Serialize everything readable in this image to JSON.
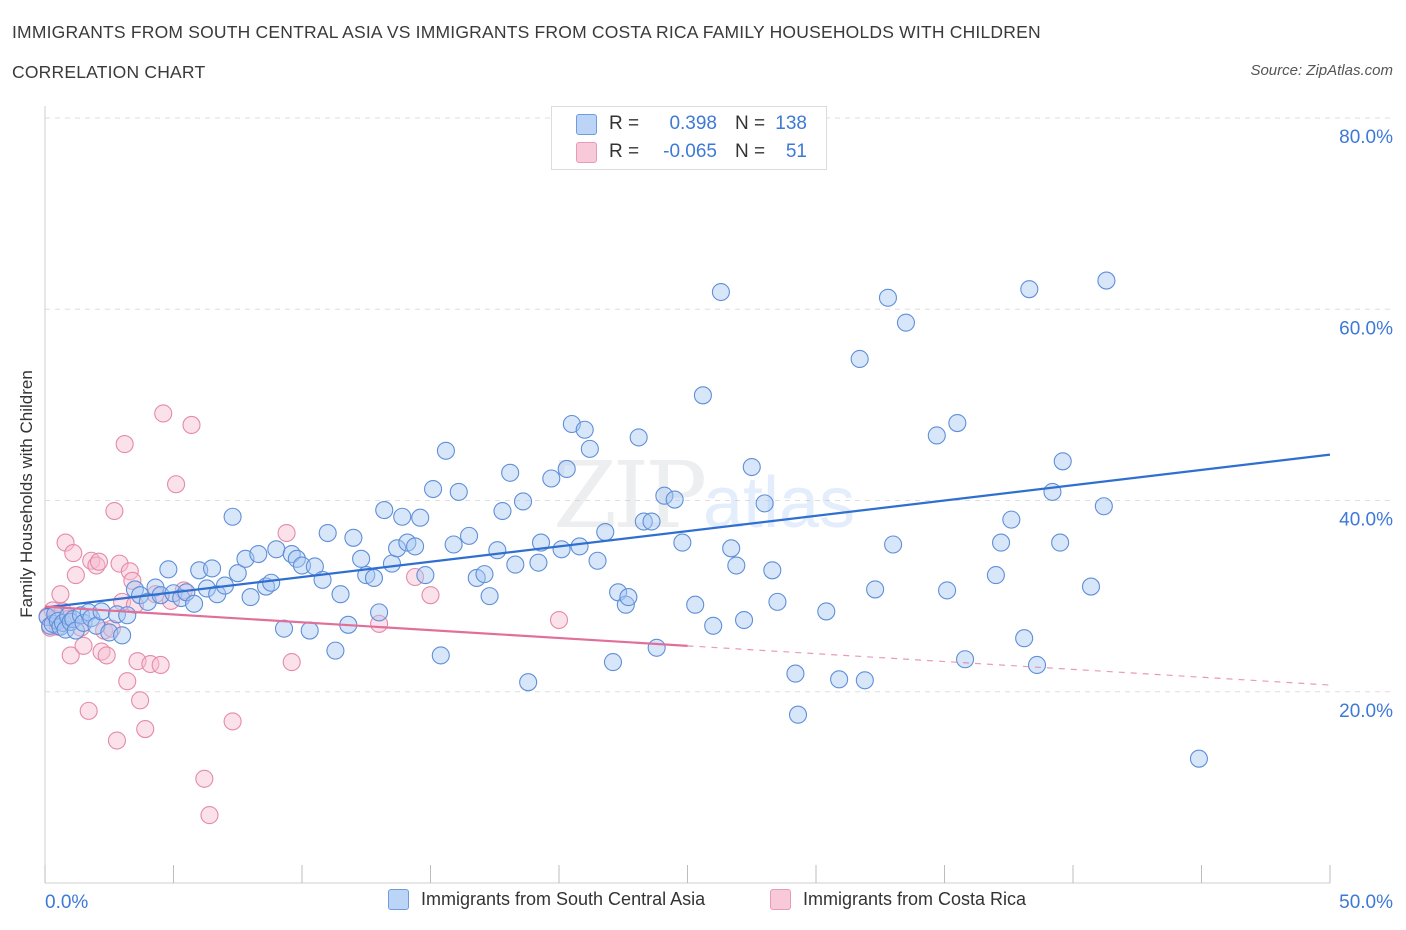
{
  "header": {
    "title": "IMMIGRANTS FROM SOUTH CENTRAL ASIA VS IMMIGRANTS FROM COSTA RICA FAMILY HOUSEHOLDS WITH CHILDREN",
    "subtitle": "CORRELATION CHART",
    "source": "Source: ZipAtlas.com"
  },
  "legend": {
    "rows": [
      {
        "r_label": "R =",
        "r_value": "0.398",
        "n_label": "N =",
        "n_value": "138"
      },
      {
        "r_label": "R =",
        "r_value": "-0.065",
        "n_label": "N =",
        "n_value": "51"
      }
    ]
  },
  "bottom_legend": {
    "blue_label": "Immigrants from South Central Asia",
    "pink_label": "Immigrants from Costa Rica"
  },
  "colors": {
    "blue_fill": "#a9c8f3",
    "blue_stroke": "#5f8fd8",
    "blue_line": "#2f6fd0",
    "pink_fill": "#f6bcd0",
    "pink_stroke": "#e58aaa",
    "pink_line": "#e0709a",
    "axis_text": "#3d79d6"
  },
  "watermark": {
    "zip": "ZIP",
    "atlas": "atlas"
  },
  "chart_data": {
    "type": "scatter",
    "title": "IMMIGRANTS FROM SOUTH CENTRAL ASIA VS IMMIGRANTS FROM COSTA RICA FAMILY HOUSEHOLDS WITH CHILDREN",
    "xlabel": "",
    "ylabel": "Family Households with Children",
    "xlim": [
      0,
      50
    ],
    "ylim": [
      0,
      80
    ],
    "x_tick_labels": [
      "0.0%",
      "50.0%"
    ],
    "y_ticks": [
      20,
      40,
      60,
      80
    ],
    "y_tick_labels": [
      "20.0%",
      "40.0%",
      "60.0%",
      "80.0%"
    ],
    "grid": true,
    "legend_position": "top-center",
    "series": [
      {
        "name": "Immigrants from South Central Asia",
        "r": 0.398,
        "n": 138,
        "trend": {
          "x0": 0,
          "y0": 28.8,
          "x1": 50,
          "y1": 44.8
        },
        "points": [
          [
            0.1,
            27.8
          ],
          [
            0.2,
            26.9
          ],
          [
            0.3,
            27.1
          ],
          [
            0.4,
            28.1
          ],
          [
            0.5,
            27.4
          ],
          [
            0.6,
            26.8
          ],
          [
            0.7,
            27.2
          ],
          [
            0.8,
            26.5
          ],
          [
            0.9,
            27.9
          ],
          [
            1.0,
            27.3
          ],
          [
            1.1,
            27.6
          ],
          [
            1.2,
            26.4
          ],
          [
            1.4,
            28.0
          ],
          [
            1.5,
            27.2
          ],
          [
            1.7,
            28.3
          ],
          [
            1.8,
            27.7
          ],
          [
            2.0,
            26.9
          ],
          [
            2.2,
            28.4
          ],
          [
            2.5,
            26.2
          ],
          [
            2.8,
            28.1
          ],
          [
            3.0,
            25.9
          ],
          [
            3.2,
            28.0
          ],
          [
            3.5,
            30.7
          ],
          [
            3.7,
            30.1
          ],
          [
            4.0,
            29.4
          ],
          [
            4.3,
            30.9
          ],
          [
            4.5,
            30.1
          ],
          [
            4.8,
            32.8
          ],
          [
            5.0,
            30.3
          ],
          [
            5.3,
            29.8
          ],
          [
            5.5,
            30.4
          ],
          [
            5.8,
            29.2
          ],
          [
            6.0,
            32.7
          ],
          [
            6.3,
            30.8
          ],
          [
            6.5,
            32.9
          ],
          [
            6.7,
            30.2
          ],
          [
            7.0,
            31.1
          ],
          [
            7.3,
            38.3
          ],
          [
            7.5,
            32.4
          ],
          [
            7.8,
            33.9
          ],
          [
            8.0,
            29.9
          ],
          [
            8.3,
            34.4
          ],
          [
            8.6,
            31.0
          ],
          [
            8.8,
            31.4
          ],
          [
            9.0,
            34.9
          ],
          [
            9.3,
            26.6
          ],
          [
            9.6,
            34.4
          ],
          [
            9.8,
            33.9
          ],
          [
            10.0,
            33.2
          ],
          [
            10.3,
            26.4
          ],
          [
            10.5,
            33.1
          ],
          [
            10.8,
            31.7
          ],
          [
            11.0,
            36.6
          ],
          [
            11.3,
            24.3
          ],
          [
            11.5,
            30.2
          ],
          [
            11.8,
            27.0
          ],
          [
            12.0,
            36.1
          ],
          [
            12.3,
            33.9
          ],
          [
            12.5,
            32.2
          ],
          [
            12.8,
            31.9
          ],
          [
            13.0,
            28.3
          ],
          [
            13.2,
            39.0
          ],
          [
            13.5,
            33.4
          ],
          [
            13.7,
            35.0
          ],
          [
            13.9,
            38.3
          ],
          [
            14.1,
            35.6
          ],
          [
            14.4,
            35.2
          ],
          [
            14.6,
            38.2
          ],
          [
            14.8,
            32.2
          ],
          [
            15.1,
            41.2
          ],
          [
            15.4,
            23.8
          ],
          [
            15.6,
            45.2
          ],
          [
            15.9,
            35.4
          ],
          [
            16.1,
            40.9
          ],
          [
            16.5,
            36.3
          ],
          [
            16.8,
            31.9
          ],
          [
            17.1,
            32.3
          ],
          [
            17.3,
            30.0
          ],
          [
            17.6,
            34.8
          ],
          [
            17.8,
            38.9
          ],
          [
            18.1,
            42.9
          ],
          [
            18.3,
            33.3
          ],
          [
            18.6,
            39.9
          ],
          [
            18.8,
            21.0
          ],
          [
            19.2,
            33.5
          ],
          [
            19.3,
            35.6
          ],
          [
            19.7,
            42.3
          ],
          [
            20.1,
            34.9
          ],
          [
            20.3,
            43.3
          ],
          [
            20.5,
            48.0
          ],
          [
            20.8,
            35.2
          ],
          [
            21.0,
            47.4
          ],
          [
            21.2,
            45.4
          ],
          [
            21.5,
            33.7
          ],
          [
            21.8,
            36.7
          ],
          [
            22.1,
            23.1
          ],
          [
            22.3,
            30.4
          ],
          [
            22.6,
            29.1
          ],
          [
            22.7,
            29.9
          ],
          [
            23.1,
            46.6
          ],
          [
            23.3,
            37.8
          ],
          [
            23.6,
            37.8
          ],
          [
            23.8,
            24.6
          ],
          [
            24.1,
            40.5
          ],
          [
            24.5,
            40.1
          ],
          [
            24.8,
            35.6
          ],
          [
            25.3,
            29.1
          ],
          [
            25.6,
            51.0
          ],
          [
            26.0,
            26.9
          ],
          [
            26.3,
            61.8
          ],
          [
            26.7,
            35.0
          ],
          [
            26.9,
            33.2
          ],
          [
            27.2,
            27.5
          ],
          [
            27.5,
            43.5
          ],
          [
            28.0,
            39.7
          ],
          [
            28.3,
            32.7
          ],
          [
            28.5,
            29.4
          ],
          [
            29.3,
            17.6
          ],
          [
            29.2,
            21.9
          ],
          [
            30.4,
            28.4
          ],
          [
            30.9,
            21.3
          ],
          [
            31.7,
            54.8
          ],
          [
            31.9,
            21.2
          ],
          [
            32.3,
            30.7
          ],
          [
            32.8,
            61.2
          ],
          [
            33.0,
            35.4
          ],
          [
            33.5,
            58.6
          ],
          [
            34.7,
            46.8
          ],
          [
            35.1,
            30.6
          ],
          [
            35.5,
            48.1
          ],
          [
            35.8,
            23.4
          ],
          [
            37.0,
            32.2
          ],
          [
            37.2,
            35.6
          ],
          [
            37.6,
            38.0
          ],
          [
            38.1,
            25.6
          ],
          [
            38.3,
            62.1
          ],
          [
            38.6,
            22.8
          ],
          [
            39.2,
            40.9
          ],
          [
            39.5,
            35.6
          ],
          [
            39.6,
            44.1
          ],
          [
            40.7,
            31.0
          ],
          [
            41.2,
            39.4
          ],
          [
            41.3,
            63.0
          ],
          [
            44.9,
            13.0
          ]
        ]
      },
      {
        "name": "Immigrants from Costa Rica",
        "r": -0.065,
        "n": 51,
        "trend": {
          "x0": 0,
          "y0": 28.9,
          "x1": 25,
          "y1": 24.8,
          "dash_to_x": 50,
          "dash_to_y": 20.7
        },
        "points": [
          [
            0.1,
            27.9
          ],
          [
            0.2,
            26.7
          ],
          [
            0.3,
            28.5
          ],
          [
            0.4,
            27.6
          ],
          [
            0.5,
            26.8
          ],
          [
            0.6,
            30.2
          ],
          [
            0.7,
            28.4
          ],
          [
            0.8,
            35.6
          ],
          [
            0.9,
            27.6
          ],
          [
            1.0,
            23.8
          ],
          [
            1.1,
            34.5
          ],
          [
            1.2,
            32.2
          ],
          [
            1.4,
            26.7
          ],
          [
            1.5,
            24.8
          ],
          [
            1.7,
            18.0
          ],
          [
            1.8,
            33.7
          ],
          [
            2.0,
            33.2
          ],
          [
            2.1,
            33.6
          ],
          [
            2.2,
            24.2
          ],
          [
            2.3,
            26.4
          ],
          [
            2.4,
            23.8
          ],
          [
            2.6,
            26.6
          ],
          [
            2.7,
            38.9
          ],
          [
            2.8,
            14.9
          ],
          [
            2.9,
            33.4
          ],
          [
            3.0,
            29.4
          ],
          [
            3.1,
            45.9
          ],
          [
            3.2,
            21.1
          ],
          [
            3.3,
            32.6
          ],
          [
            3.4,
            31.6
          ],
          [
            3.5,
            29.1
          ],
          [
            3.6,
            23.2
          ],
          [
            3.7,
            19.1
          ],
          [
            3.9,
            16.1
          ],
          [
            4.1,
            22.9
          ],
          [
            4.3,
            30.2
          ],
          [
            4.5,
            22.8
          ],
          [
            4.6,
            49.1
          ],
          [
            4.9,
            29.5
          ],
          [
            5.1,
            41.7
          ],
          [
            5.4,
            30.6
          ],
          [
            5.7,
            47.9
          ],
          [
            6.2,
            10.9
          ],
          [
            6.4,
            7.1
          ],
          [
            7.3,
            16.9
          ],
          [
            9.4,
            36.6
          ],
          [
            9.6,
            23.1
          ],
          [
            13.0,
            27.1
          ],
          [
            14.4,
            32.0
          ],
          [
            15.0,
            30.1
          ],
          [
            20.0,
            27.5
          ]
        ]
      }
    ]
  }
}
